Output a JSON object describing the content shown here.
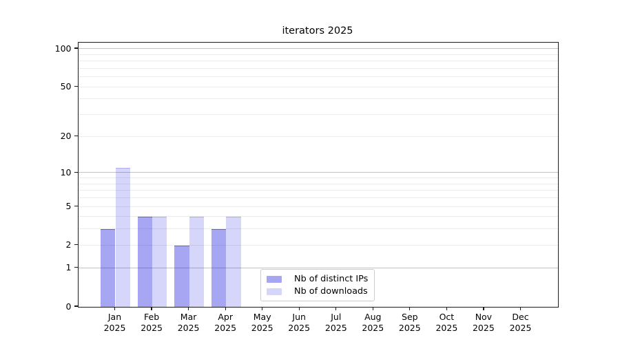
{
  "chart_data": {
    "type": "bar",
    "title": "iterators 2025",
    "categories": [
      "Jan",
      "Feb",
      "Mar",
      "Apr",
      "May",
      "Jun",
      "Jul",
      "Aug",
      "Sep",
      "Oct",
      "Nov",
      "Dec"
    ],
    "x_year_label": "2025",
    "series": [
      {
        "name": "Nb of distinct IPs",
        "key": "ips",
        "values": [
          3,
          4,
          2,
          3,
          0,
          0,
          0,
          0,
          0,
          0,
          0,
          0
        ]
      },
      {
        "name": "Nb of downloads",
        "key": "downloads",
        "values": [
          11,
          4,
          4,
          4,
          0,
          0,
          0,
          0,
          0,
          0,
          0,
          0
        ]
      }
    ],
    "y_scale": "log1p",
    "ylim": [
      0,
      112
    ],
    "y_ticks": [
      {
        "value": 0,
        "label": "0"
      },
      {
        "value": 1,
        "label": "1"
      },
      {
        "value": 2,
        "label": "2"
      },
      {
        "value": 5,
        "label": "5"
      },
      {
        "value": 10,
        "label": "10"
      },
      {
        "value": 20,
        "label": "20"
      },
      {
        "value": 50,
        "label": "50"
      },
      {
        "value": 100,
        "label": "100"
      }
    ],
    "y_major_grid": [
      1,
      10,
      100
    ],
    "y_minor_grid": [
      2,
      3,
      4,
      5,
      6,
      7,
      8,
      9,
      20,
      30,
      40,
      50,
      60,
      70,
      80,
      90
    ],
    "grid": true,
    "legend_position": "lower center"
  },
  "legend": {
    "items": [
      {
        "label": "Nb of distinct IPs"
      },
      {
        "label": "Nb of downloads"
      }
    ]
  },
  "colors": {
    "ips_fill": "rgba(0,0,221,0.35)",
    "ips_edge": "rgba(0,0,200,0.42)",
    "downloads_fill": "rgba(0,0,221,0.16)",
    "downloads_edge": "rgba(0,0,200,0.20)",
    "grid_major": "#c2c2c2",
    "grid_minor": "#ebebeb",
    "spine": "#1a1a1a",
    "text": "#000000",
    "legend_border": "#cccccc",
    "background": "#ffffff"
  }
}
